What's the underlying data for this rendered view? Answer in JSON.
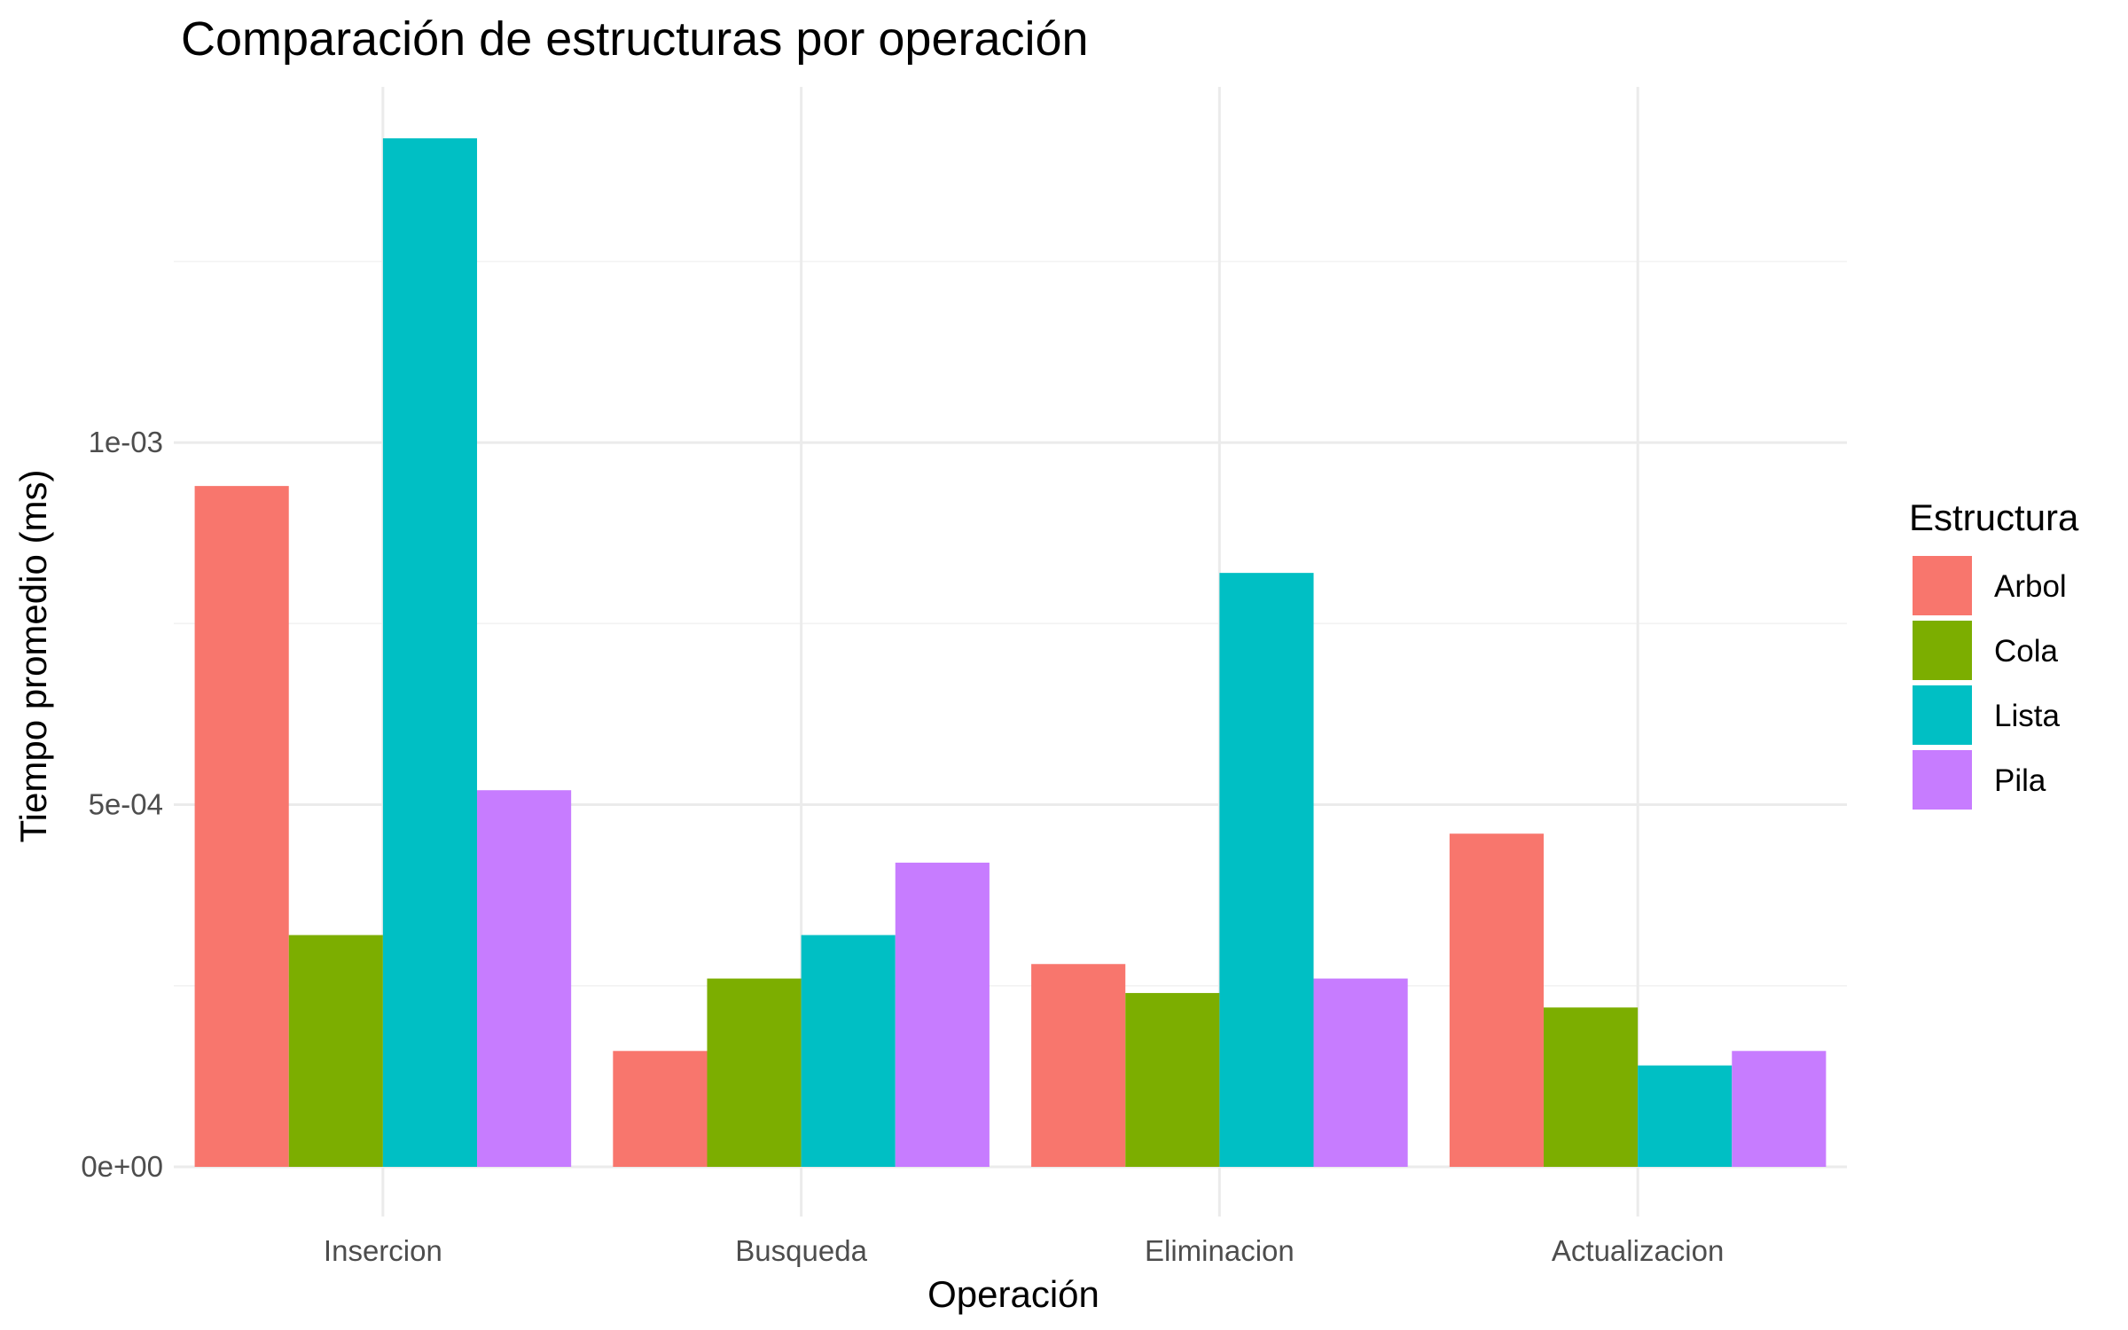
{
  "chart_data": {
    "type": "bar",
    "title": "Comparación de estructuras por operación",
    "xlabel": "Operación",
    "ylabel": "Tiempo promedio (ms)",
    "categories": [
      "Insercion",
      "Busqueda",
      "Eliminacion",
      "Actualizacion"
    ],
    "ylim": [
      0,
      0.00142
    ],
    "yticks": [
      {
        "value": 0,
        "label": "0e+00"
      },
      {
        "value": 0.0005,
        "label": "5e-04"
      },
      {
        "value": 0.001,
        "label": "1e-03"
      }
    ],
    "grid": true,
    "legend": {
      "title": "Estructura",
      "position": "right"
    },
    "series": [
      {
        "name": "Arbol",
        "color": "#F8766D",
        "values": [
          0.00094,
          0.00016,
          0.00028,
          0.00046
        ]
      },
      {
        "name": "Cola",
        "color": "#7CAE00",
        "values": [
          0.00032,
          0.00026,
          0.00024,
          0.00022
        ]
      },
      {
        "name": "Lista",
        "color": "#00BFC4",
        "values": [
          0.00142,
          0.00032,
          0.00082,
          0.00014
        ]
      },
      {
        "name": "Pila",
        "color": "#C77CFF",
        "values": [
          0.00052,
          0.00042,
          0.00026,
          0.00016
        ]
      }
    ]
  }
}
